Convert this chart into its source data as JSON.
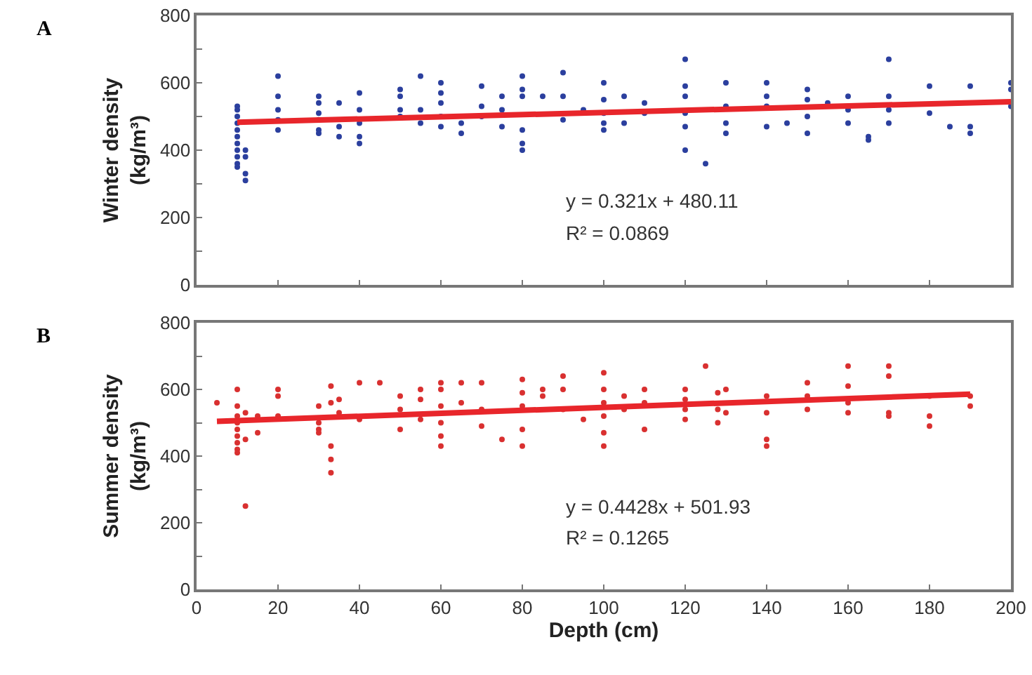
{
  "chart_data": [
    {
      "type": "scatter",
      "title": "A",
      "ylabel": "Winter density\n(kg/m³)",
      "xlim": [
        0,
        200
      ],
      "xticks": [
        0,
        20,
        40,
        60,
        80,
        100,
        120,
        140,
        160,
        180,
        200
      ],
      "ylim": [
        0,
        800
      ],
      "yticks": [
        0,
        {
          "value": 100,
          "label": null
        },
        200,
        {
          "value": 300,
          "label": null
        },
        400,
        {
          "value": 500,
          "label": null
        },
        600,
        {
          "value": 700,
          "label": null
        },
        800
      ],
      "tick_labels": "y",
      "grid": false,
      "marker": "circle",
      "annotations": [
        "y = 0.321x + 480.11",
        "R² = 0.0869"
      ],
      "series": [
        {
          "color": "#2b3f9e",
          "x": [
            10,
            10,
            10,
            10,
            10,
            10,
            10,
            10,
            10,
            10,
            10,
            12,
            12,
            12,
            12,
            20,
            20,
            20,
            20,
            20,
            30,
            30,
            30,
            30,
            30,
            30,
            35,
            35,
            35,
            40,
            40,
            40,
            40,
            40,
            50,
            50,
            50,
            50,
            55,
            55,
            55,
            60,
            60,
            60,
            60,
            60,
            65,
            65,
            70,
            70,
            70,
            75,
            75,
            75,
            80,
            80,
            80,
            80,
            80,
            80,
            85,
            90,
            90,
            90,
            95,
            100,
            100,
            100,
            100,
            100,
            105,
            105,
            110,
            110,
            120,
            120,
            120,
            120,
            120,
            120,
            125,
            130,
            130,
            130,
            130,
            140,
            140,
            140,
            140,
            145,
            150,
            150,
            150,
            150,
            155,
            160,
            160,
            160,
            165,
            165,
            170,
            170,
            170,
            170,
            180,
            180,
            185,
            190,
            190,
            190,
            200,
            200,
            200
          ],
          "values": [
            530,
            520,
            500,
            480,
            460,
            440,
            420,
            400,
            380,
            360,
            350,
            330,
            310,
            380,
            400,
            620,
            560,
            520,
            490,
            460,
            560,
            540,
            510,
            490,
            460,
            450,
            540,
            470,
            440,
            570,
            520,
            480,
            440,
            420,
            580,
            560,
            520,
            500,
            620,
            520,
            480,
            600,
            570,
            540,
            500,
            470,
            480,
            450,
            590,
            530,
            500,
            560,
            520,
            470,
            620,
            580,
            560,
            460,
            420,
            400,
            560,
            630,
            560,
            490,
            520,
            600,
            550,
            510,
            480,
            460,
            560,
            480,
            540,
            510,
            670,
            590,
            560,
            510,
            470,
            400,
            360,
            600,
            530,
            480,
            450,
            600,
            560,
            530,
            470,
            480,
            580,
            550,
            500,
            450,
            540,
            560,
            520,
            480,
            440,
            430,
            670,
            560,
            520,
            480,
            590,
            510,
            470,
            590,
            470,
            450,
            600,
            580,
            530
          ]
        },
        {
          "type": "line",
          "marker": "none",
          "color": "#e8262b",
          "x": [
            10,
            200
          ],
          "values": [
            483,
            544
          ]
        }
      ]
    },
    {
      "type": "scatter",
      "title": "B",
      "xlabel": "Depth (cm)",
      "ylabel": "Summer density\n(kg/m³)",
      "xlim": [
        0,
        200
      ],
      "xticks": [
        0,
        20,
        40,
        60,
        80,
        100,
        120,
        140,
        160,
        180,
        200
      ],
      "ylim": [
        0,
        800
      ],
      "yticks": [
        0,
        {
          "value": 100,
          "label": null
        },
        200,
        {
          "value": 300,
          "label": null
        },
        400,
        {
          "value": 500,
          "label": null
        },
        600,
        {
          "value": 700,
          "label": null
        },
        800
      ],
      "grid": false,
      "marker": "circle",
      "annotations": [
        "y = 0.4428x + 501.93",
        "R² = 0.1265"
      ],
      "series": [
        {
          "color": "#d93030",
          "x": [
            5,
            10,
            10,
            10,
            10,
            10,
            10,
            10,
            10,
            10,
            12,
            12,
            12,
            15,
            15,
            20,
            20,
            20,
            30,
            30,
            30,
            30,
            33,
            33,
            33,
            33,
            33,
            35,
            35,
            40,
            40,
            45,
            50,
            50,
            50,
            55,
            55,
            55,
            60,
            60,
            60,
            60,
            60,
            60,
            65,
            65,
            70,
            70,
            70,
            75,
            80,
            80,
            80,
            80,
            80,
            85,
            85,
            90,
            90,
            90,
            95,
            100,
            100,
            100,
            100,
            100,
            100,
            105,
            105,
            110,
            110,
            110,
            120,
            120,
            120,
            120,
            125,
            128,
            128,
            128,
            130,
            130,
            140,
            140,
            140,
            140,
            150,
            150,
            150,
            160,
            160,
            160,
            160,
            170,
            170,
            170,
            170,
            180,
            180,
            180,
            190,
            190
          ],
          "values": [
            560,
            550,
            520,
            500,
            480,
            460,
            440,
            420,
            410,
            600,
            530,
            450,
            250,
            520,
            470,
            600,
            580,
            520,
            550,
            500,
            480,
            470,
            610,
            560,
            430,
            390,
            350,
            570,
            530,
            620,
            510,
            620,
            580,
            540,
            480,
            600,
            570,
            510,
            620,
            600,
            550,
            500,
            460,
            430,
            620,
            560,
            620,
            540,
            490,
            450,
            630,
            590,
            550,
            480,
            430,
            600,
            580,
            640,
            600,
            540,
            510,
            650,
            600,
            560,
            520,
            470,
            430,
            580,
            540,
            600,
            560,
            480,
            600,
            570,
            540,
            510,
            670,
            590,
            540,
            500,
            600,
            530,
            580,
            530,
            450,
            430,
            620,
            580,
            540,
            670,
            610,
            560,
            530,
            670,
            640,
            530,
            520,
            580,
            520,
            490,
            580,
            550
          ]
        },
        {
          "type": "line",
          "marker": "none",
          "color": "#e8262b",
          "x": [
            5,
            190
          ],
          "values": [
            504,
            586
          ]
        }
      ]
    }
  ]
}
